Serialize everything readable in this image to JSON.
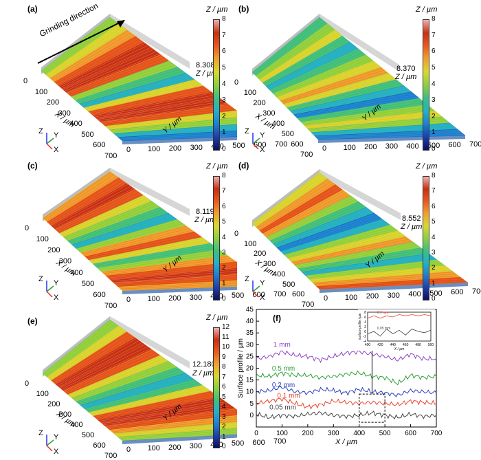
{
  "colors": {
    "colormap": [
      "#0a1060",
      "#1f3fa8",
      "#1f7fd0",
      "#26b0c8",
      "#3fbf7f",
      "#8fcf3f",
      "#d8d830",
      "#f0a030",
      "#e85a20",
      "#c83010",
      "#f0b0b0",
      "#ffffff"
    ],
    "profile_colors": [
      "#8e44c8",
      "#2e9e3a",
      "#2a3fbf",
      "#e8442a",
      "#444444"
    ]
  },
  "annotation": {
    "grinding_direction": "Grinding direction"
  },
  "chart_data": [
    {
      "type": "surface",
      "panel": "(a)",
      "zmax_label": "8.308",
      "z_axis_label": "Z / µm",
      "x_axis_label": "X / µm",
      "y_axis_label": "Y / µm",
      "x_ticks": [
        "0",
        "100",
        "200",
        "300",
        "400",
        "500",
        "600",
        "700"
      ],
      "y_ticks": [
        "0",
        "100",
        "200",
        "300",
        "400",
        "500",
        "600",
        "700"
      ],
      "colorbar": {
        "title": "Z / µm",
        "ticks": [
          "0",
          "1",
          "2",
          "3",
          "4",
          "5",
          "6",
          "7",
          "8"
        ]
      },
      "triad": {
        "z": "Z",
        "y": "Y",
        "x": "X"
      }
    },
    {
      "type": "surface",
      "panel": "(b)",
      "zmax_label": "8.370",
      "z_axis_label": "Z / µm",
      "x_axis_label": "X / µm",
      "y_axis_label": "Y / µm",
      "x_ticks": [
        "0",
        "100",
        "200",
        "300",
        "400",
        "500",
        "600",
        "700"
      ],
      "y_ticks": [
        "0",
        "100",
        "200",
        "300",
        "400",
        "500",
        "600",
        "700"
      ],
      "colorbar": {
        "title": "Z / µm",
        "ticks": [
          "0",
          "1",
          "2",
          "3",
          "4",
          "5",
          "6",
          "7",
          "8"
        ]
      },
      "triad": {
        "z": "Z",
        "y": "Y",
        "x": "X"
      }
    },
    {
      "type": "surface",
      "panel": "(c)",
      "zmax_label": "8.119",
      "z_axis_label": "Z / µm",
      "x_axis_label": "X / µm",
      "y_axis_label": "Y / µm",
      "x_ticks": [
        "0",
        "100",
        "200",
        "300",
        "400",
        "500",
        "600",
        "700"
      ],
      "y_ticks": [
        "0",
        "100",
        "200",
        "300",
        "400",
        "500",
        "600",
        "700"
      ],
      "colorbar": {
        "title": "Z / µm",
        "ticks": [
          "0",
          "1",
          "2",
          "3",
          "4",
          "5",
          "6",
          "7",
          "8"
        ]
      },
      "triad": {
        "z": "Z",
        "y": "Y",
        "x": "X"
      }
    },
    {
      "type": "surface",
      "panel": "(d)",
      "zmax_label": "8.552",
      "z_axis_label": "Z / µm",
      "x_axis_label": "X / µm",
      "y_axis_label": "Y / µm",
      "x_ticks": [
        "0",
        "100",
        "200",
        "300",
        "400",
        "500",
        "600",
        "700"
      ],
      "y_ticks": [
        "0",
        "100",
        "200",
        "300",
        "400",
        "500",
        "600",
        "700"
      ],
      "colorbar": {
        "title": "Z / µm",
        "ticks": [
          "0",
          "1",
          "2",
          "3",
          "4",
          "5",
          "6",
          "7",
          "8"
        ]
      },
      "triad": {
        "z": "Z",
        "y": "Y",
        "x": "X"
      }
    },
    {
      "type": "surface",
      "panel": "(e)",
      "zmax_label": "12.180",
      "z_axis_label": "Z / µm",
      "x_axis_label": "X / µm",
      "y_axis_label": "Y / µm",
      "x_ticks": [
        "0",
        "100",
        "200",
        "300",
        "400",
        "500",
        "600",
        "700"
      ],
      "y_ticks": [
        "0",
        "100",
        "200",
        "300",
        "400",
        "500",
        "600",
        "700"
      ],
      "colorbar": {
        "title": "Z / µm",
        "ticks": [
          "0",
          "1",
          "2",
          "3",
          "4",
          "5",
          "6",
          "7",
          "8",
          "9",
          "10",
          "11",
          "12"
        ]
      },
      "triad": {
        "z": "Z",
        "y": "Y",
        "x": "X"
      }
    },
    {
      "type": "line",
      "panel": "(f)",
      "xlabel": "X / µm",
      "ylabel": "Surface profile / µm",
      "xlim": [
        0,
        700
      ],
      "ylim": [
        -5,
        45
      ],
      "x_ticks": [
        0,
        100,
        200,
        300,
        400,
        500,
        600,
        700
      ],
      "y_ticks": [
        0,
        5,
        10,
        15,
        20,
        25,
        30,
        35,
        40,
        45
      ],
      "x": [
        0,
        50,
        100,
        150,
        200,
        250,
        300,
        350,
        400,
        450,
        500,
        550,
        600,
        650,
        700
      ],
      "series": [
        {
          "name": "1 mm",
          "values": [
            24,
            25,
            27,
            25.5,
            25,
            23.5,
            25,
            26.5,
            27,
            26,
            25,
            23.5,
            26,
            24,
            24
          ]
        },
        {
          "name": "0.5 mm",
          "values": [
            17,
            16.5,
            18,
            17,
            17,
            16,
            16.5,
            17.5,
            18,
            16.5,
            16,
            13.5,
            17,
            16,
            16.5
          ]
        },
        {
          "name": "0.2 mm",
          "values": [
            10,
            10.5,
            12,
            10,
            9.5,
            11,
            10.5,
            9.5,
            11,
            10,
            9.5,
            8.5,
            10.5,
            10,
            9.5
          ]
        },
        {
          "name": "0.1 mm",
          "values": [
            5,
            6,
            7,
            5,
            3.5,
            4.5,
            6,
            5.5,
            5,
            5.5,
            5,
            4.5,
            6,
            5.5,
            5
          ]
        },
        {
          "name": "0.05 mm",
          "values": [
            0.5,
            -1,
            0,
            -0.5,
            0.5,
            1,
            0,
            -0.5,
            0,
            1,
            0,
            -1,
            0.5,
            -0.5,
            0
          ]
        }
      ],
      "highlight_box": {
        "x": [
          400,
          500
        ],
        "y": [
          -3,
          9
        ]
      },
      "inset": {
        "xlabel": "X / µm",
        "ylabel": "Surface profile / µm",
        "xlim": [
          400,
          500
        ],
        "ylim": [
          -4,
          8
        ],
        "x_ticks": [
          400,
          420,
          440,
          460,
          480,
          500
        ],
        "y_ticks": [
          -4,
          -2,
          0,
          2,
          4,
          6,
          8
        ],
        "x": [
          400,
          410,
          420,
          430,
          440,
          450,
          460,
          470,
          480,
          490,
          500
        ],
        "series": [
          {
            "name": "0.1 mm",
            "values": [
              5.5,
              6.5,
              5.5,
              6.5,
              6,
              7,
              6.5,
              7,
              6.5,
              7,
              6.5
            ]
          },
          {
            "name": "0.05 mm",
            "values": [
              -1,
              0,
              -2,
              1,
              -1,
              0.5,
              -1.5,
              1,
              0,
              -0.5,
              0.5
            ]
          }
        ]
      }
    }
  ]
}
